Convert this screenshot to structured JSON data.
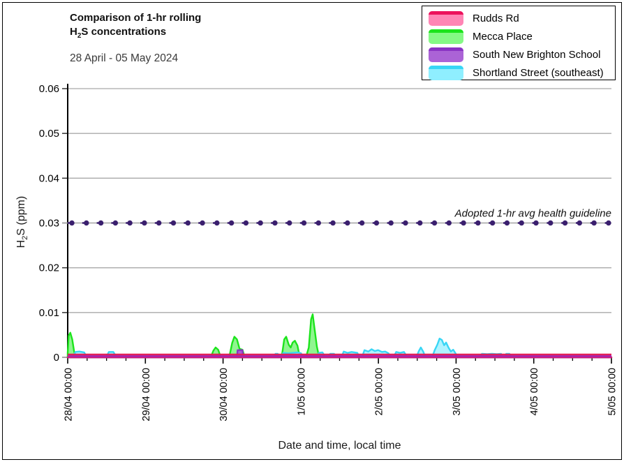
{
  "title": {
    "line1": "Comparison of 1-hr rolling",
    "h2s_h": "H",
    "h2s_sub": "2",
    "h2s_rest": "S concentrations",
    "subtitle": "28 April - 05 May 2024"
  },
  "axis_titles": {
    "y_h": "H",
    "y_sub": "2",
    "y_rest": "S (ppm)",
    "x": "Date and time, local time"
  },
  "legend": {
    "items": [
      {
        "id": "rudds",
        "label": "Rudds Rd",
        "fill": "#FF85B5",
        "edge": "#EC125C"
      },
      {
        "id": "mecca",
        "label": "Mecca Place",
        "fill": "#85F985",
        "edge": "#1CE41C"
      },
      {
        "id": "snbs",
        "label": "South New Brighton School",
        "fill": "#AB63D6",
        "edge": "#8A33C4"
      },
      {
        "id": "shortland",
        "label": "Shortland Street (southeast)",
        "fill": "#8FEFFF",
        "edge": "#38D6F5"
      }
    ]
  },
  "colors": {
    "gridline": "#A9A9A9",
    "axis": "#000000",
    "tick": "#333333",
    "text": "#1A1A1A",
    "baseline_magenta": "#AC23A6",
    "baseline_crimson": "#E3194F"
  },
  "chart_data": {
    "type": "area",
    "title": "Comparison of 1-hr rolling H2S concentrations",
    "subtitle": "28 April - 05 May 2024",
    "xlabel": "Date and time, local time",
    "ylabel": "H2S (ppm)",
    "x_unit": "hours since 28/04/2024 00:00 local time",
    "xlim": [
      0,
      168
    ],
    "ylim": [
      0,
      0.06
    ],
    "grid": "horizontal",
    "legend_position": "top-right",
    "y_ticks": [
      {
        "value": 0,
        "label": "0"
      },
      {
        "value": 0.01,
        "label": "0.01"
      },
      {
        "value": 0.02,
        "label": "0.02"
      },
      {
        "value": 0.03,
        "label": "0.03"
      },
      {
        "value": 0.04,
        "label": "0.04"
      },
      {
        "value": 0.05,
        "label": "0.05"
      },
      {
        "value": 0.06,
        "label": "0.06"
      }
    ],
    "x_ticks": [
      {
        "hour": 0,
        "label": "28/04 00:00"
      },
      {
        "hour": 24,
        "label": "29/04 00:00"
      },
      {
        "hour": 48,
        "label": "30/04 00:00"
      },
      {
        "hour": 72,
        "label": "1/05 00:00"
      },
      {
        "hour": 96,
        "label": "2/05 00:00"
      },
      {
        "hour": 120,
        "label": "3/05 00:00"
      },
      {
        "hour": 144,
        "label": "4/05 00:00"
      },
      {
        "hour": 168,
        "label": "5/05 00:00"
      }
    ],
    "x_minor_tick_hours": 6,
    "guideline": {
      "value": 0.03,
      "label": "Adopted 1-hr avg health guideline",
      "color": "#3A1F6E"
    },
    "draw_order": [
      "mecca",
      "shortland",
      "snbs",
      "rudds"
    ],
    "series": [
      {
        "id": "rudds",
        "name": "Rudds Rd",
        "edge": "#EC125C",
        "fill": "#FF85B5",
        "points": [
          [
            0,
            0
          ],
          [
            168,
            0
          ]
        ]
      },
      {
        "id": "mecca",
        "name": "Mecca Place",
        "edge": "#1CE41C",
        "fill": "#90F590",
        "points": [
          [
            0,
            0.001
          ],
          [
            0.3,
            0.0048
          ],
          [
            0.8,
            0.0055
          ],
          [
            1.4,
            0.004
          ],
          [
            2,
            0.0012
          ],
          [
            2.6,
            0
          ],
          [
            44.2,
            0
          ],
          [
            45,
            0.0015
          ],
          [
            45.7,
            0.0022
          ],
          [
            46.5,
            0.0017
          ],
          [
            47.3,
            0
          ],
          [
            49.9,
            0
          ],
          [
            50.8,
            0.0032
          ],
          [
            51.5,
            0.0046
          ],
          [
            52.3,
            0.004
          ],
          [
            53.1,
            0.0019
          ],
          [
            54,
            0.0017
          ],
          [
            54.7,
            0
          ],
          [
            66.1,
            0
          ],
          [
            66.9,
            0.004
          ],
          [
            67.5,
            0.0046
          ],
          [
            68.3,
            0.0028
          ],
          [
            68.9,
            0.0022
          ],
          [
            69.5,
            0.0033
          ],
          [
            70.2,
            0.0037
          ],
          [
            71,
            0.0026
          ],
          [
            71.7,
            0
          ],
          [
            73.6,
            0
          ],
          [
            74.5,
            0.0022
          ],
          [
            75.2,
            0.0085
          ],
          [
            75.7,
            0.0096
          ],
          [
            76.3,
            0.0062
          ],
          [
            77,
            0.0024
          ],
          [
            77.7,
            0
          ],
          [
            168,
            0
          ]
        ]
      },
      {
        "id": "snbs",
        "name": "South New Brighton School",
        "edge": "#8A33C4",
        "fill": "#A85FD3",
        "points": [
          [
            0,
            0
          ],
          [
            52.3,
            0
          ],
          [
            52.5,
            0.0016
          ],
          [
            54,
            0.0016
          ],
          [
            54.2,
            0
          ],
          [
            168,
            0
          ]
        ]
      },
      {
        "id": "shortland",
        "name": "Shortland Street (southeast)",
        "edge": "#38D6F5",
        "fill": "#AFF3FF",
        "points": [
          [
            0,
            0
          ],
          [
            1.6,
            0
          ],
          [
            2.4,
            0.0012
          ],
          [
            3.6,
            0.0013
          ],
          [
            5.1,
            0.0011
          ],
          [
            5.9,
            0
          ],
          [
            11.9,
            0
          ],
          [
            12.7,
            0.0012
          ],
          [
            14.1,
            0.0012
          ],
          [
            15.1,
            0
          ],
          [
            63.6,
            0
          ],
          [
            64.2,
            0.0008
          ],
          [
            64.9,
            0.0008
          ],
          [
            65.3,
            0
          ],
          [
            65.9,
            0
          ],
          [
            66.6,
            0.001
          ],
          [
            68.1,
            0.0009
          ],
          [
            69.6,
            0.001
          ],
          [
            71.1,
            0.0011
          ],
          [
            72.1,
            0.0009
          ],
          [
            72.7,
            0
          ],
          [
            76.9,
            0
          ],
          [
            77.6,
            0.001
          ],
          [
            78.7,
            0.0011
          ],
          [
            79.7,
            0
          ],
          [
            80.3,
            0
          ],
          [
            81.1,
            0.0008
          ],
          [
            82.3,
            0.0008
          ],
          [
            82.9,
            0
          ],
          [
            84.5,
            0
          ],
          [
            85.3,
            0.0013
          ],
          [
            86.5,
            0.001
          ],
          [
            87.7,
            0.0012
          ],
          [
            89.5,
            0.001
          ],
          [
            90.1,
            0
          ],
          [
            90.9,
            0
          ],
          [
            91.7,
            0.0016
          ],
          [
            92.9,
            0.0013
          ],
          [
            93.9,
            0.0018
          ],
          [
            94.9,
            0.0014
          ],
          [
            95.9,
            0.0016
          ],
          [
            97.1,
            0.0012
          ],
          [
            98.1,
            0.0013
          ],
          [
            99.1,
            0.0009
          ],
          [
            99.9,
            0
          ],
          [
            100.7,
            0
          ],
          [
            101.5,
            0.0012
          ],
          [
            102.7,
            0.001
          ],
          [
            103.9,
            0.0012
          ],
          [
            104.9,
            0
          ],
          [
            107.7,
            0
          ],
          [
            108.5,
            0.0014
          ],
          [
            109.1,
            0.0022
          ],
          [
            109.9,
            0.0012
          ],
          [
            110.5,
            0
          ],
          [
            112.6,
            0
          ],
          [
            113.4,
            0.0016
          ],
          [
            114.2,
            0.0028
          ],
          [
            114.9,
            0.0042
          ],
          [
            115.6,
            0.0039
          ],
          [
            116.3,
            0.0027
          ],
          [
            116.9,
            0.0033
          ],
          [
            117.7,
            0.0021
          ],
          [
            118.4,
            0.0013
          ],
          [
            119.1,
            0.0017
          ],
          [
            119.9,
            0.0008
          ],
          [
            120.5,
            0
          ],
          [
            127.3,
            0
          ],
          [
            128,
            0.0008
          ],
          [
            129.6,
            0.0007
          ],
          [
            131.1,
            0.0008
          ],
          [
            132.6,
            0.0007
          ],
          [
            133.9,
            0.0008
          ],
          [
            134.3,
            0
          ],
          [
            134.9,
            0
          ],
          [
            135.5,
            0.0008
          ],
          [
            136.5,
            0.0008
          ],
          [
            137.1,
            0
          ],
          [
            168,
            0
          ]
        ]
      }
    ]
  }
}
